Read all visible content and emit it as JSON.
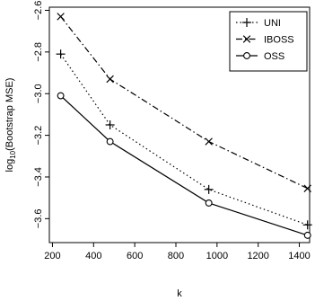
{
  "chart_data": {
    "type": "line",
    "xlabel": "k",
    "ylabel_main": "log",
    "ylabel_sub": "10",
    "ylabel_rest": "(Bootstrap MSE)",
    "xlim": [
      185,
      1450
    ],
    "ylim": [
      -3.715,
      -2.585
    ],
    "x_ticks": [
      200,
      400,
      600,
      800,
      1000,
      1200,
      1400
    ],
    "y_ticks": [
      -2.6,
      -2.8,
      -3.0,
      -3.2,
      -3.4,
      -3.6
    ],
    "y_tick_labels": [
      "−2.6",
      "−2.8",
      "−3.0",
      "−3.2",
      "−3.4",
      "−3.6"
    ],
    "x": [
      240,
      480,
      960,
      1440
    ],
    "series": [
      {
        "name": "UNI",
        "values": [
          -2.81,
          -3.15,
          -3.46,
          -3.63
        ],
        "line": "dotted",
        "marker": "plus"
      },
      {
        "name": "IBOSS",
        "values": [
          -2.63,
          -2.93,
          -3.23,
          -3.455
        ],
        "line": "dashdot",
        "marker": "cross"
      },
      {
        "name": "OSS",
        "values": [
          -3.01,
          -3.23,
          -3.525,
          -3.68
        ],
        "line": "solid",
        "marker": "circle"
      }
    ],
    "legend_position": "top-right",
    "grid": false
  }
}
